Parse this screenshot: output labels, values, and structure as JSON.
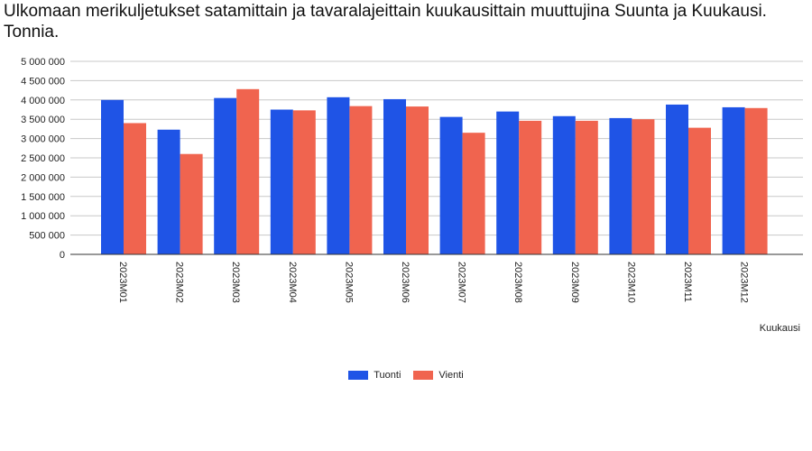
{
  "page": {
    "title": "Ulkomaan merikuljetukset satamittain ja tavaralajeittain kuukausittain muuttujina Suunta ja Kuukausi. Tonnia."
  },
  "chart_data": {
    "type": "bar",
    "title": "Ulkomaan merikuljetukset satamittain ja tavaralajeittain kuukausittain muuttujina Suunta ja Kuukausi. Tonnia.",
    "xlabel": "Kuukausi",
    "ylabel": "",
    "ylim": [
      0,
      5000000
    ],
    "yticks": [
      0,
      500000,
      1000000,
      1500000,
      2000000,
      2500000,
      3000000,
      3500000,
      4000000,
      4500000,
      5000000
    ],
    "ytick_labels": [
      "0",
      "500 000",
      "1 000 000",
      "1 500 000",
      "2 000 000",
      "2 500 000",
      "3 000 000",
      "3 500 000",
      "4 000 000",
      "4 500 000",
      "5 000 000"
    ],
    "grid": true,
    "legend_position": "bottom",
    "categories": [
      "2023M01",
      "2023M02",
      "2023M03",
      "2023M04",
      "2023M05",
      "2023M06",
      "2023M07",
      "2023M08",
      "2023M09",
      "2023M10",
      "2023M11",
      "2023M12"
    ],
    "series": [
      {
        "name": "Tuonti",
        "color": "#1f54e6",
        "values": [
          4000000,
          3230000,
          4050000,
          3750000,
          4070000,
          4020000,
          3560000,
          3700000,
          3580000,
          3530000,
          3880000,
          3810000
        ]
      },
      {
        "name": "Vienti",
        "color": "#f0644f",
        "values": [
          3400000,
          2600000,
          4280000,
          3730000,
          3840000,
          3830000,
          3150000,
          3460000,
          3460000,
          3500000,
          3280000,
          3790000
        ]
      }
    ]
  }
}
